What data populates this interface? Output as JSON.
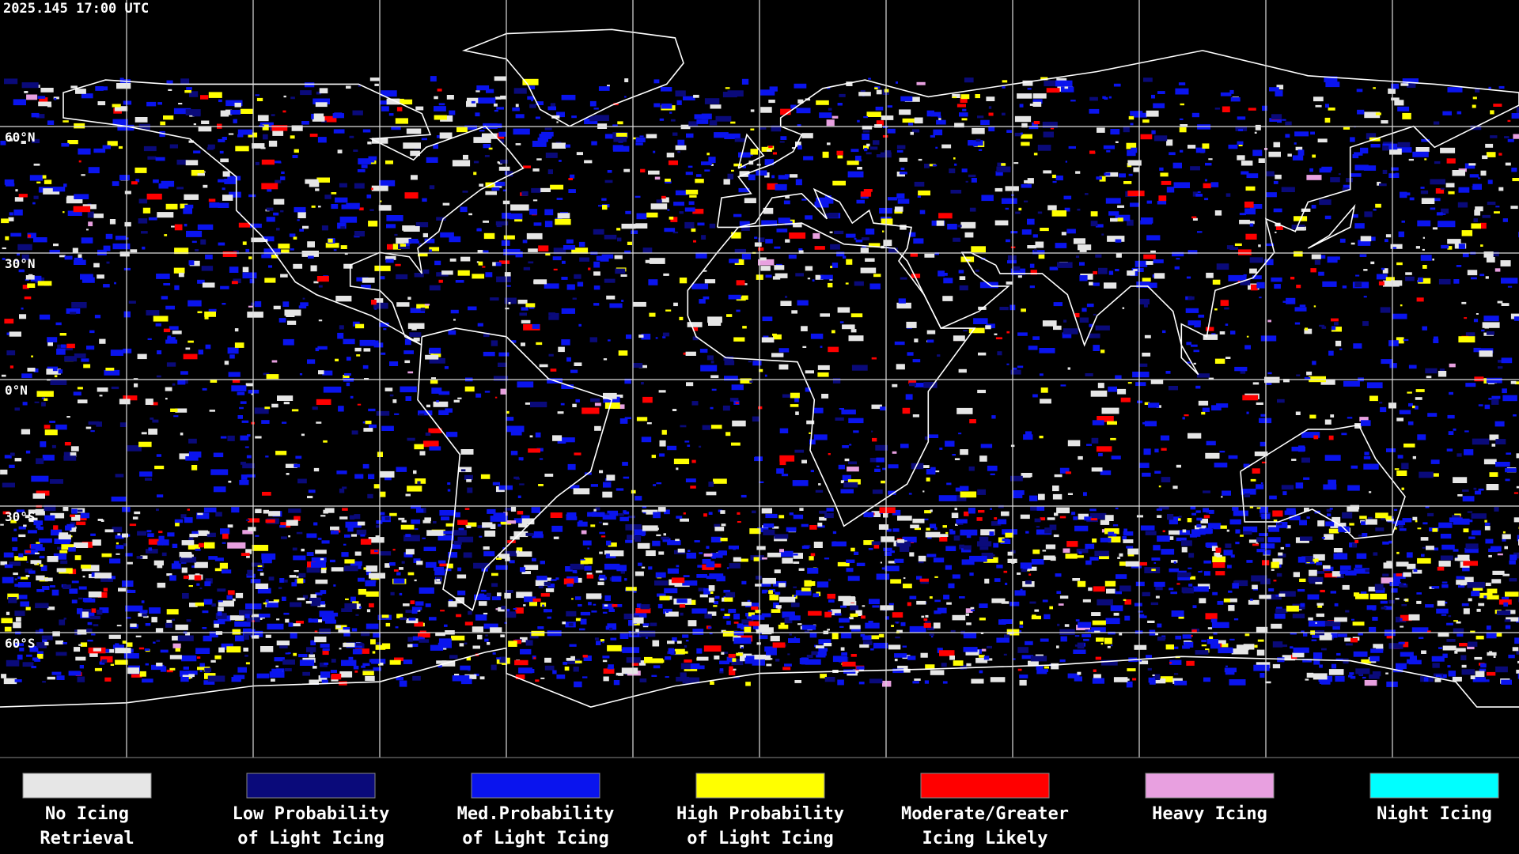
{
  "header": {
    "timestamp": "2025.145 17:00 UTC"
  },
  "map": {
    "latitude_labels": [
      "60°N",
      "30°N",
      "0°N",
      "30°S",
      "60°S"
    ]
  },
  "legend": {
    "items": [
      {
        "lines": [
          "No Icing",
          "Retrieval"
        ],
        "color": "#e6e6e6"
      },
      {
        "lines": [
          "Low Probability",
          "of Light Icing"
        ],
        "color": "#0a0a7a"
      },
      {
        "lines": [
          "Med.Probability",
          "of Light Icing"
        ],
        "color": "#0a14ee"
      },
      {
        "lines": [
          "High Probability",
          "of Light Icing"
        ],
        "color": "#ffff00"
      },
      {
        "lines": [
          "Moderate/Greater",
          "Icing Likely"
        ],
        "color": "#ff0000"
      },
      {
        "lines": [
          "Heavy Icing"
        ],
        "color": "#e8a0e0"
      },
      {
        "lines": [
          "Night Icing"
        ],
        "color": "#00ffff"
      }
    ]
  }
}
